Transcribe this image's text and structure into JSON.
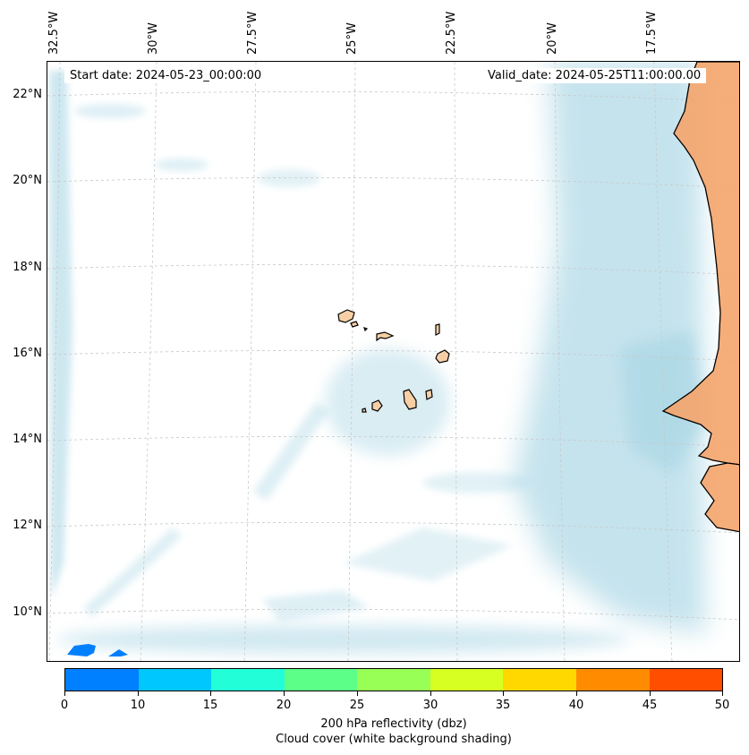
{
  "map": {
    "start_date": "Start date: 2024-05-23_00:00:00",
    "valid_date": "Valid_date: 2024-05-25T11:00:00.00",
    "lon_labels": [
      "32.5°W",
      "30°W",
      "27.5°W",
      "25°W",
      "22.5°W",
      "20°W",
      "17.5°W"
    ],
    "lat_labels": [
      "22°N",
      "20°N",
      "18°N",
      "16°N",
      "14°N",
      "12°N",
      "10°N"
    ],
    "land_color": "#f4a46a",
    "cloud_color": "#add8e6"
  },
  "colorbar": {
    "colors": [
      "#0080ff",
      "#00c8ff",
      "#22ffd8",
      "#5cff88",
      "#98ff56",
      "#d8ff22",
      "#ffd800",
      "#ff8c00",
      "#ff4e00"
    ],
    "tick_labels": [
      "0",
      "10",
      "15",
      "20",
      "25",
      "30",
      "35",
      "40",
      "45",
      "50"
    ],
    "label": "200 hPa reflectivity (dbz)",
    "sublabel": "Cloud cover (white background shading)"
  }
}
